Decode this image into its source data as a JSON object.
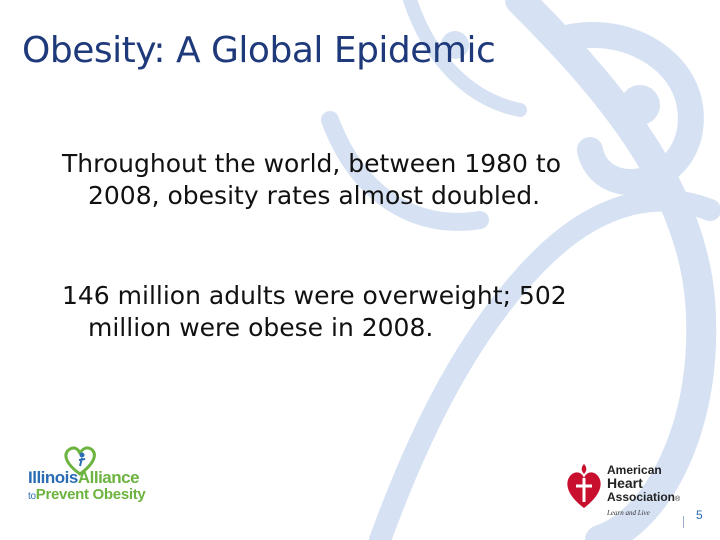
{
  "slide": {
    "title": "Obesity: A Global Epidemic",
    "bullets": [
      {
        "line1": "Throughout the world, between 1980 to",
        "line2": "2008, obesity rates almost doubled."
      },
      {
        "line1": "146 million adults were overweight; 502",
        "line2": "million were obese in 2008."
      }
    ],
    "slide_number": "5"
  },
  "logos": {
    "left": {
      "line1_a": "Illinois",
      "line1_b": "Alliance",
      "line2_a": "to",
      "line2_b": "Prevent Obesity"
    },
    "right": {
      "line1": "American",
      "line2": "Heart",
      "line3": "Association",
      "reg": "®",
      "tagline": "Learn and Live"
    }
  },
  "colors": {
    "title": "#1f3a7a",
    "swirl": "#d6e2f3",
    "accent_blue": "#2a6db5",
    "accent_green": "#6db33f",
    "aha_red": "#c8102e"
  }
}
